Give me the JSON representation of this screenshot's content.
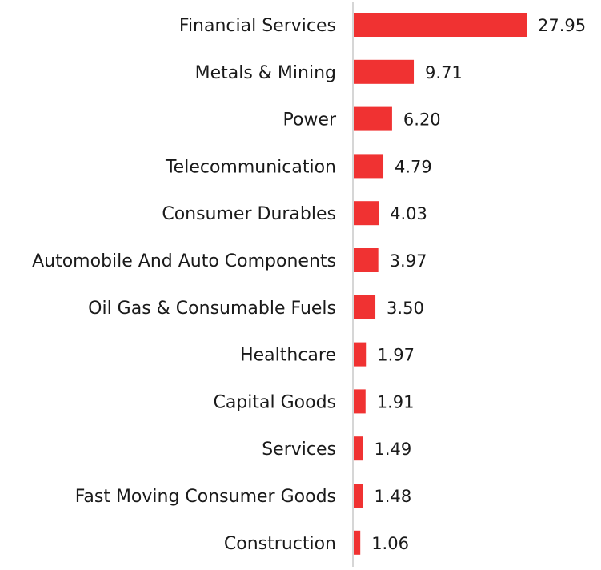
{
  "colors": {
    "bar": "#f03232",
    "axis": "#c8c8c8",
    "text": "#1a1a1a"
  },
  "chart_data": {
    "type": "bar",
    "orientation": "horizontal",
    "categories": [
      "Financial Services",
      "Metals & Mining",
      "Power",
      "Telecommunication",
      "Consumer Durables",
      "Automobile And Auto Components",
      "Oil Gas & Consumable Fuels",
      "Healthcare",
      "Capital Goods",
      "Services",
      "Fast Moving Consumer Goods",
      "Construction"
    ],
    "values": [
      27.95,
      9.71,
      6.2,
      4.79,
      4.03,
      3.97,
      3.5,
      1.97,
      1.91,
      1.49,
      1.48,
      1.06
    ],
    "value_labels": [
      "27.95",
      "9.71",
      "6.20",
      "4.79",
      "4.03",
      "3.97",
      "3.50",
      "1.97",
      "1.91",
      "1.49",
      "1.48",
      "1.06"
    ],
    "title": "",
    "xlabel": "",
    "ylabel": "",
    "grid": false,
    "legend": "none"
  }
}
